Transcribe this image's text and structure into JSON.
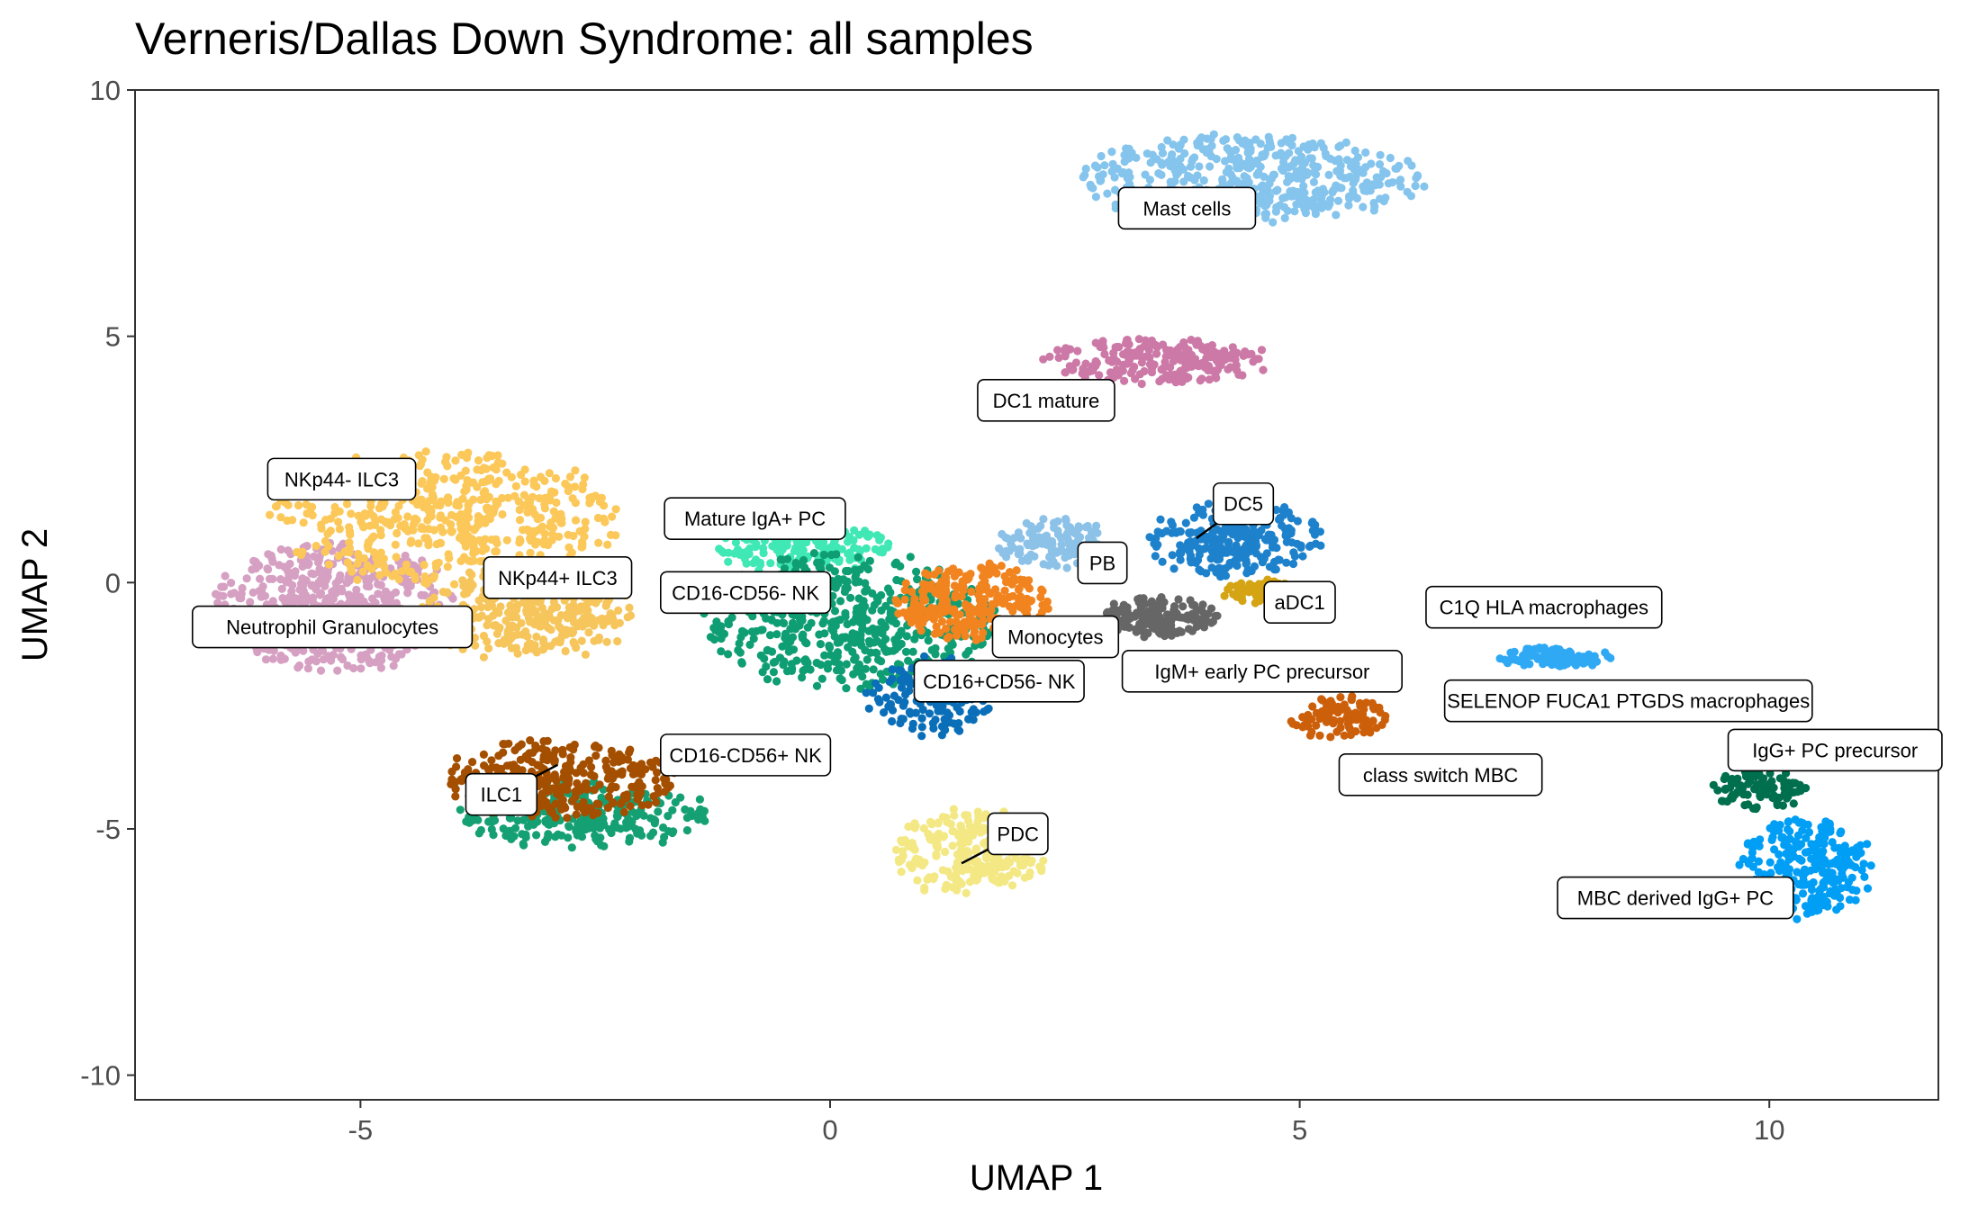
{
  "chart_data": {
    "type": "scatter",
    "title": "Verneris/Dallas Down Syndrome: all samples",
    "xlabel": "UMAP 1",
    "ylabel": "UMAP 2",
    "xlim": [
      -7.4,
      11.8
    ],
    "ylim": [
      -10.5,
      10
    ],
    "x_ticks": [
      -5,
      0,
      5,
      10
    ],
    "y_ticks": [
      -10,
      -5,
      0,
      5,
      10
    ],
    "x_tick_labels": [
      "-5",
      "0",
      "5",
      "10"
    ],
    "y_tick_labels": [
      "-10",
      "-5",
      "0",
      "5",
      "10"
    ],
    "grid": false,
    "legend": "none",
    "clusters": [
      {
        "name": "Neutrophil Granulocytes",
        "color": "#d6a0c2",
        "cx": -5.3,
        "cy": -0.5,
        "rx": 1.3,
        "ry": 1.3,
        "n": 520
      },
      {
        "name": "NKp44- ILC3",
        "color": "#fbc859",
        "cx": -4.1,
        "cy": 1.3,
        "rx": 1.8,
        "ry": 1.4,
        "n": 520
      },
      {
        "name": "NKp44+ ILC3",
        "color": "#f6c65c",
        "cx": -3.2,
        "cy": -0.6,
        "rx": 1.1,
        "ry": 1.0,
        "n": 330
      },
      {
        "name": "Mature IgA+ PC",
        "color": "#3fe8b4",
        "cx": -0.3,
        "cy": 0.7,
        "rx": 0.9,
        "ry": 0.5,
        "n": 160
      },
      {
        "name": "CD16-CD56- NK",
        "color": "#0f9e73",
        "cx": 0.2,
        "cy": -0.8,
        "rx": 1.5,
        "ry": 1.4,
        "n": 520
      },
      {
        "name": "Mast cells",
        "color": "#85c4ec",
        "cx": 4.5,
        "cy": 8.2,
        "rx": 1.8,
        "ry": 0.9,
        "n": 480
      },
      {
        "name": "DC1 mature",
        "color": "#cc79a7",
        "cx": 3.5,
        "cy": 4.5,
        "rx": 1.2,
        "ry": 0.45,
        "n": 220
      },
      {
        "name": "DC5",
        "color": "#1d81cc",
        "cx": 4.3,
        "cy": 0.9,
        "rx": 0.9,
        "ry": 0.8,
        "n": 260
      },
      {
        "name": "PB",
        "color": "#8cc2e8",
        "cx": 2.4,
        "cy": 0.8,
        "rx": 0.6,
        "ry": 0.5,
        "n": 130
      },
      {
        "name": "aDC1",
        "color": "#d4a414",
        "cx": 4.6,
        "cy": -0.2,
        "rx": 0.4,
        "ry": 0.3,
        "n": 70
      },
      {
        "name": "Monocytes",
        "color": "#f1841f",
        "cx": 1.5,
        "cy": -0.4,
        "rx": 0.8,
        "ry": 0.8,
        "n": 240
      },
      {
        "name": "IgM+ early PC precursor",
        "color": "#666666",
        "cx": 3.5,
        "cy": -0.7,
        "rx": 0.6,
        "ry": 0.4,
        "n": 160
      },
      {
        "name": "CD16+CD56- NK",
        "color": "#0a6fb8",
        "cx": 1.1,
        "cy": -2.3,
        "rx": 0.7,
        "ry": 0.8,
        "n": 160
      },
      {
        "name": "class switch MBC",
        "color": "#cc5f0a",
        "cx": 5.4,
        "cy": -2.8,
        "rx": 0.5,
        "ry": 0.5,
        "n": 90
      },
      {
        "name": "CD16-CD56+ NK",
        "color": "#15a073",
        "cx": -2.6,
        "cy": -4.7,
        "rx": 1.3,
        "ry": 0.7,
        "n": 260
      },
      {
        "name": "ILC1",
        "color": "#a44f00",
        "cx": -2.9,
        "cy": -4.0,
        "rx": 1.2,
        "ry": 0.8,
        "n": 300
      },
      {
        "name": "PDC",
        "color": "#f3e884",
        "cx": 1.5,
        "cy": -5.5,
        "rx": 0.8,
        "ry": 0.9,
        "n": 240
      },
      {
        "name": "C1Q HLA macrophages",
        "color": "#2fa9f4",
        "cx": 7.7,
        "cy": -1.5,
        "rx": 0.6,
        "ry": 0.2,
        "n": 80
      },
      {
        "name": "SELENOP FUCA1 PTGDS macrophages",
        "color": "#2fa9f4",
        "cx": 7.9,
        "cy": -1.6,
        "rx": 0.3,
        "ry": 0.12,
        "n": 30
      },
      {
        "name": "IgG+ PC precursor",
        "color": "#006f4d",
        "cx": 9.9,
        "cy": -4.2,
        "rx": 0.5,
        "ry": 0.4,
        "n": 90
      },
      {
        "name": "MBC derived IgG+ PC",
        "color": "#009ef5",
        "cx": 10.4,
        "cy": -5.8,
        "rx": 0.7,
        "ry": 1.0,
        "n": 260
      }
    ],
    "labels": [
      {
        "text": "Mast cells",
        "x": 3.8,
        "y": 7.6,
        "px": 4.5,
        "py": 7.6
      },
      {
        "text": "DC1 mature",
        "x": 2.3,
        "y": 3.7,
        "px": 2.8,
        "py": 3.7
      },
      {
        "text": "NKp44- ILC3",
        "x": -5.2,
        "y": 2.1,
        "px": -4.5,
        "py": 2.1
      },
      {
        "text": "Mature IgA+ PC",
        "x": -0.8,
        "y": 1.3,
        "px": -0.8,
        "py": 1.3
      },
      {
        "text": "DC5",
        "x": 4.4,
        "y": 1.6,
        "px": 3.9,
        "py": 0.9
      },
      {
        "text": "PB",
        "x": 2.9,
        "y": 0.4,
        "px": 2.9,
        "py": 0.4
      },
      {
        "text": "NKp44+ ILC3",
        "x": -2.9,
        "y": 0.1,
        "px": -2.9,
        "py": 0.1
      },
      {
        "text": "CD16-CD56- NK",
        "x": -0.9,
        "y": -0.2,
        "px": -0.9,
        "py": -0.2
      },
      {
        "text": "aDC1",
        "x": 5.0,
        "y": -0.4,
        "px": 5.0,
        "py": -0.4
      },
      {
        "text": "Neutrophil Granulocytes",
        "x": -5.3,
        "y": -0.9,
        "px": -5.3,
        "py": -0.9
      },
      {
        "text": "Monocytes",
        "x": 2.4,
        "y": -1.1,
        "px": 2.4,
        "py": -1.1
      },
      {
        "text": "IgM+ early PC precursor",
        "x": 4.6,
        "y": -1.8,
        "px": 4.6,
        "py": -1.8
      },
      {
        "text": "CD16+CD56- NK",
        "x": 1.8,
        "y": -2.0,
        "px": 1.8,
        "py": -2.0
      },
      {
        "text": "C1Q HLA macrophages",
        "x": 7.6,
        "y": -0.5,
        "px": 7.6,
        "py": -0.5
      },
      {
        "text": "SELENOP FUCA1 PTGDS macrophages",
        "x": 8.5,
        "y": -2.4,
        "px": 8.5,
        "py": -2.4
      },
      {
        "text": "IgG+ PC precursor",
        "x": 10.7,
        "y": -3.4,
        "px": 10.7,
        "py": -3.4
      },
      {
        "text": "CD16-CD56+ NK",
        "x": -0.9,
        "y": -3.5,
        "px": -0.9,
        "py": -3.5
      },
      {
        "text": "class switch MBC",
        "x": 6.5,
        "y": -3.9,
        "px": 6.5,
        "py": -3.9
      },
      {
        "text": "ILC1",
        "x": -3.5,
        "y": -4.3,
        "px": -2.9,
        "py": -3.7
      },
      {
        "text": "PDC",
        "x": 2.0,
        "y": -5.1,
        "px": 1.4,
        "py": -5.7
      },
      {
        "text": "MBC derived IgG+ PC",
        "x": 9.0,
        "y": -6.4,
        "px": 9.0,
        "py": -6.4
      }
    ]
  }
}
